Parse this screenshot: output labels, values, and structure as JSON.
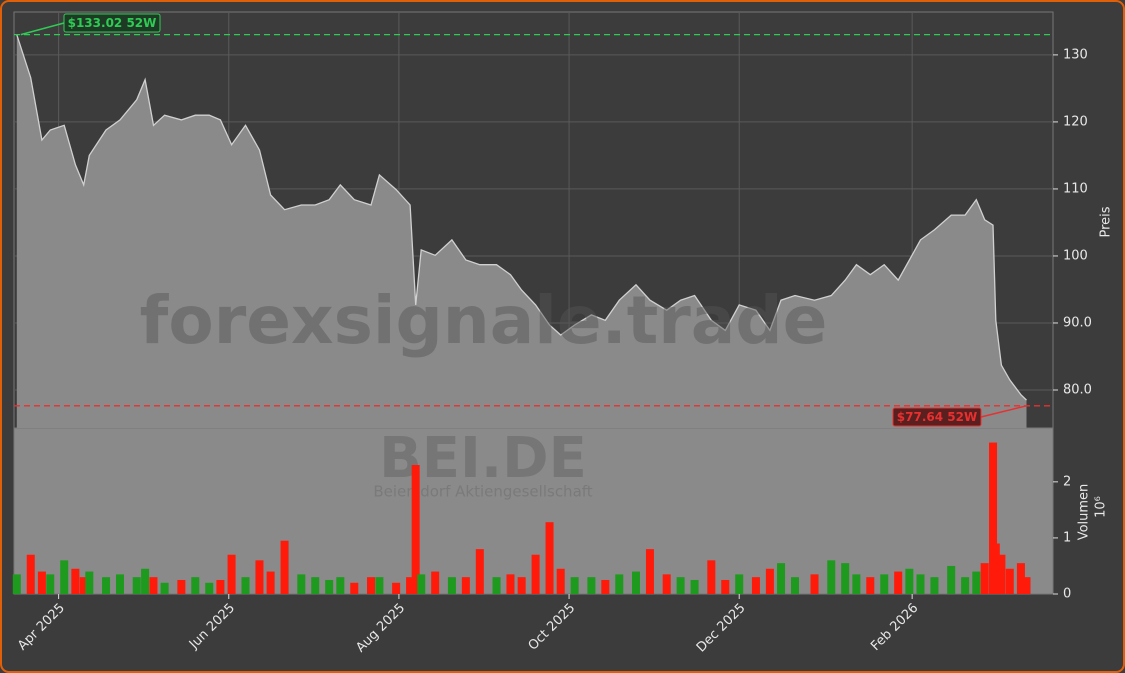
{
  "chart_data": {
    "type": "stock",
    "watermark": "forexsignale.trade",
    "ticker": "BEI.DE",
    "company": "Beiersdorf Aktiengesellschaft",
    "ylabel": "Preis",
    "y2label": "Volumen",
    "y2unit": "10⁶",
    "xlim": [
      0,
      372.5
    ],
    "xticks": [
      {
        "value": 16,
        "label": "Apr 2025"
      },
      {
        "value": 77,
        "label": "Jun 2025"
      },
      {
        "value": 138,
        "label": "Aug 2025"
      },
      {
        "value": 199,
        "label": "Oct 2025"
      },
      {
        "value": 260,
        "label": "Dec 2025"
      },
      {
        "value": 322,
        "label": "Feb 2026"
      }
    ],
    "ylim": [
      74.33,
      136.4
    ],
    "yticks": [
      {
        "value": 80,
        "label": "80.0"
      },
      {
        "value": 90,
        "label": "90.0"
      },
      100,
      110,
      120,
      130
    ],
    "y2lim": [
      0,
      2.96
    ],
    "y2ticks": [
      0,
      1,
      2
    ],
    "grid": true,
    "x": [
      1,
      6,
      10,
      13,
      18,
      22,
      25,
      27,
      33,
      38,
      44,
      47,
      50,
      54,
      60,
      65,
      70,
      74,
      78,
      83,
      88,
      92,
      97,
      103,
      108,
      113,
      117,
      122,
      128,
      131,
      137,
      142,
      144,
      146,
      151,
      157,
      162,
      167,
      173,
      178,
      182,
      187,
      192,
      196,
      201,
      207,
      212,
      217,
      223,
      228,
      234,
      239,
      244,
      250,
      255,
      260,
      266,
      271,
      275,
      280,
      287,
      293,
      298,
      302,
      307,
      312,
      317,
      321,
      325,
      330,
      336,
      341,
      345,
      348,
      351,
      352,
      354,
      357,
      361,
      363
    ],
    "series": [
      {
        "name": "Preis",
        "color": "#d0d0d0",
        "fill": "#8a8a8a",
        "values": [
          133,
          126.6,
          117.3,
          118.8,
          119.5,
          113.6,
          110.6,
          115,
          118.8,
          120.3,
          123.3,
          126.3,
          119.5,
          121,
          120.3,
          121,
          121,
          120.3,
          116.6,
          119.5,
          115.8,
          109.1,
          106.9,
          107.6,
          107.6,
          108.4,
          110.6,
          108.4,
          107.6,
          112.1,
          109.9,
          107.6,
          92.7,
          100.9,
          100.1,
          102.4,
          99.4,
          98.7,
          98.7,
          97.2,
          94.9,
          92.7,
          89.7,
          88.2,
          89.7,
          91.2,
          90.4,
          93.4,
          95.7,
          93.4,
          91.9,
          93.4,
          94.1,
          90.4,
          88.9,
          92.7,
          91.9,
          88.9,
          93.4,
          94.1,
          93.4,
          94.1,
          96.4,
          98.7,
          97.2,
          98.7,
          96.4,
          99.4,
          102.4,
          103.9,
          106.1,
          106.1,
          108.4,
          105.4,
          104.6,
          90.4,
          83.7,
          81.5,
          79.3,
          78.5
        ]
      },
      {
        "name": "Volumen",
        "axis": "y2",
        "up_color": "#1e9a1e",
        "down_color": "#ff1a0a",
        "values": [
          0.35,
          0.7,
          0.4,
          0.35,
          0.6,
          0.45,
          0.3,
          0.4,
          0.3,
          0.35,
          0.3,
          0.45,
          0.3,
          0.2,
          0.25,
          0.3,
          0.2,
          0.25,
          0.7,
          0.3,
          0.6,
          0.4,
          0.95,
          0.35,
          0.3,
          0.25,
          0.3,
          0.2,
          0.3,
          0.3,
          0.2,
          0.3,
          2.3,
          0.35,
          0.4,
          0.3,
          0.3,
          0.8,
          0.3,
          0.35,
          0.3,
          0.7,
          1.28,
          0.45,
          0.3,
          0.3,
          0.25,
          0.35,
          0.4,
          0.8,
          0.35,
          0.3,
          0.25,
          0.6,
          0.25,
          0.35,
          0.3,
          0.45,
          0.55,
          0.3,
          0.35,
          0.6,
          0.55,
          0.35,
          0.3,
          0.35,
          0.4,
          0.45,
          0.35,
          0.3,
          0.5,
          0.3,
          0.4,
          0.55,
          2.7,
          0.9,
          0.7,
          0.45,
          0.55,
          0.3
        ]
      }
    ],
    "annotations": [
      {
        "value": 133.02,
        "label": "$133.02 52W",
        "color": "#2ecc55"
      },
      {
        "value": 77.64,
        "label": "$77.64 52W",
        "color": "#e83030"
      }
    ]
  }
}
